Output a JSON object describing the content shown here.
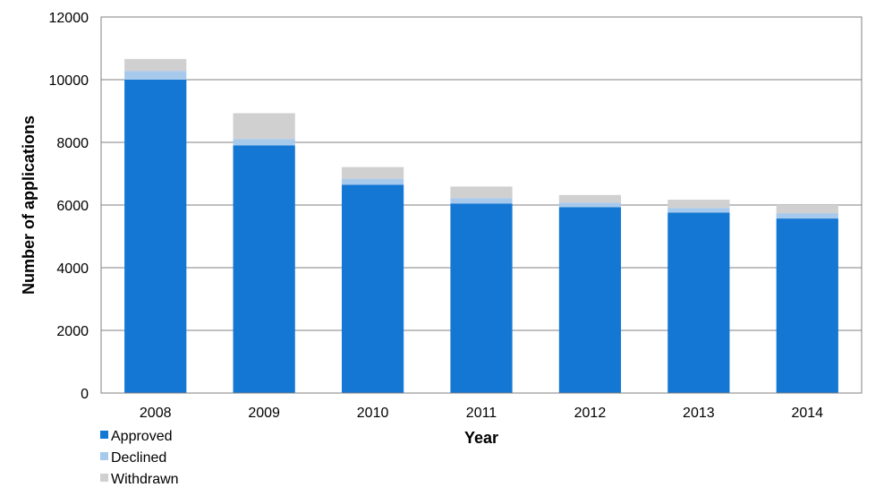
{
  "chart_data": {
    "type": "bar",
    "stacked": true,
    "categories": [
      "2008",
      "2009",
      "2010",
      "2011",
      "2012",
      "2013",
      "2014"
    ],
    "series": [
      {
        "name": "Approved",
        "color": "#1477d4",
        "values": [
          10000,
          7900,
          6650,
          6050,
          5930,
          5760,
          5570
        ]
      },
      {
        "name": "Declined",
        "color": "#a7c9ec",
        "values": [
          280,
          210,
          190,
          170,
          150,
          150,
          170
        ]
      },
      {
        "name": "Withdrawn",
        "color": "#d0d0d0",
        "values": [
          380,
          820,
          370,
          370,
          240,
          260,
          260
        ]
      }
    ],
    "xlabel": "Year",
    "ylabel": "Number of applications",
    "ylim": [
      0,
      12000
    ],
    "yticks": [
      "0",
      "2000",
      "4000",
      "6000",
      "8000",
      "10000",
      "12000"
    ],
    "grid": true,
    "legend": "bottom-left"
  }
}
